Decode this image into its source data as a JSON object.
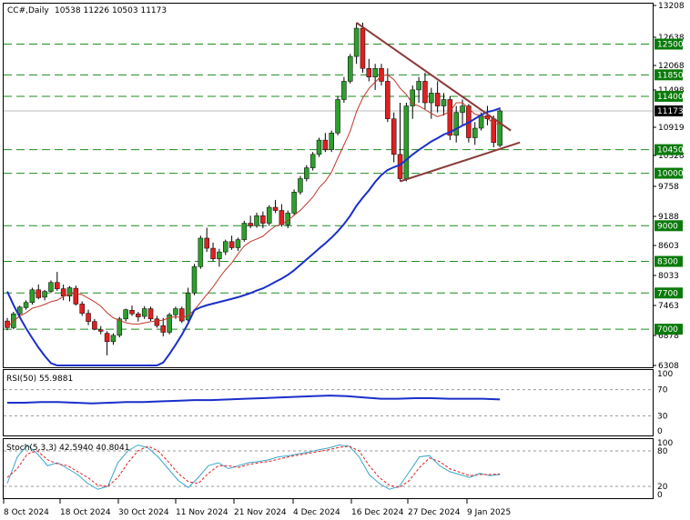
{
  "header": {
    "symbol": "CC#,Daily",
    "ohlc": "10538 11226 10503 11173"
  },
  "colors": {
    "up": "#2e9e2e",
    "down": "#e02020",
    "ma_fast": "#c0392b",
    "ma_slow": "#1a2fc9",
    "trendline": "#8b3a3a",
    "level_line": "#1e8c1e",
    "level_badge": "#0a7a0a",
    "price_badge": "#000000",
    "rsi": "#1a2fc9",
    "stoch_main": "#3aa6c8",
    "stoch_signal": "#e02020"
  },
  "chart_data": [
    {
      "type": "candlestick",
      "title": "CC#,Daily",
      "x": [
        "8 Oct 2024",
        "18 Oct 2024",
        "30 Oct 2024",
        "11 Nov 2024",
        "21 Nov 2024",
        "4 Dec 2024",
        "16 Dec 2024",
        "27 Dec 2024",
        "9 Jan 2025"
      ],
      "y_ticks": [
        13208,
        12638,
        12068,
        11498,
        10919,
        10328,
        9758,
        9188,
        8603,
        8033,
        7463,
        6878,
        6308
      ],
      "ylim": [
        6308,
        13208
      ],
      "current_price": "11173",
      "levels": [
        "12500",
        "11850",
        "11400",
        "10450",
        "10000",
        "9000",
        "8300",
        "7700",
        "7000"
      ],
      "candles": [
        [
          7160,
          7220,
          6980,
          7030
        ],
        [
          7030,
          7340,
          7000,
          7300
        ],
        [
          7300,
          7460,
          7240,
          7430
        ],
        [
          7420,
          7560,
          7380,
          7520
        ],
        [
          7520,
          7800,
          7480,
          7760
        ],
        [
          7760,
          7860,
          7580,
          7610
        ],
        [
          7620,
          7760,
          7560,
          7730
        ],
        [
          7730,
          7940,
          7700,
          7900
        ],
        [
          7900,
          8100,
          7740,
          7780
        ],
        [
          7780,
          7860,
          7560,
          7640
        ],
        [
          7640,
          7830,
          7540,
          7800
        ],
        [
          7790,
          7840,
          7460,
          7490
        ],
        [
          7490,
          7540,
          7260,
          7310
        ],
        [
          7310,
          7380,
          7080,
          7150
        ],
        [
          7150,
          7200,
          6980,
          7000
        ],
        [
          6990,
          7060,
          6900,
          6960
        ],
        [
          6920,
          6960,
          6500,
          6760
        ],
        [
          6760,
          6920,
          6700,
          6880
        ],
        [
          6880,
          7240,
          6840,
          7200
        ],
        [
          7200,
          7400,
          7150,
          7380
        ],
        [
          7370,
          7460,
          7260,
          7300
        ],
        [
          7300,
          7340,
          7150,
          7240
        ],
        [
          7250,
          7450,
          7200,
          7400
        ],
        [
          7400,
          7440,
          7160,
          7200
        ],
        [
          7200,
          7260,
          7030,
          7070
        ],
        [
          7070,
          7220,
          6860,
          6940
        ],
        [
          6940,
          7320,
          6900,
          7280
        ],
        [
          7280,
          7440,
          7200,
          7400
        ],
        [
          7400,
          7440,
          7120,
          7160
        ],
        [
          7180,
          7800,
          7150,
          7700
        ],
        [
          7700,
          8250,
          7660,
          8200
        ],
        [
          8200,
          8800,
          8160,
          8750
        ],
        [
          8750,
          8960,
          8480,
          8550
        ],
        [
          8550,
          8660,
          8300,
          8350
        ],
        [
          8350,
          8540,
          8200,
          8480
        ],
        [
          8480,
          8720,
          8420,
          8680
        ],
        [
          8680,
          8800,
          8520,
          8560
        ],
        [
          8560,
          8760,
          8500,
          8720
        ],
        [
          8720,
          9100,
          8680,
          9050
        ],
        [
          9050,
          9200,
          8950,
          9000
        ],
        [
          9000,
          9260,
          8960,
          9200
        ],
        [
          9200,
          9280,
          8950,
          9050
        ],
        [
          9050,
          9400,
          9000,
          9360
        ],
        [
          9360,
          9500,
          9250,
          9300
        ],
        [
          9300,
          9420,
          8980,
          9020
        ],
        [
          9020,
          9300,
          8950,
          9250
        ],
        [
          9250,
          9700,
          9200,
          9650
        ],
        [
          9650,
          9950,
          9600,
          9900
        ],
        [
          9900,
          10150,
          9850,
          10100
        ],
        [
          10100,
          10400,
          10050,
          10350
        ],
        [
          10350,
          10700,
          10300,
          10650
        ],
        [
          10650,
          10800,
          10400,
          10450
        ],
        [
          10450,
          10850,
          10400,
          10800
        ],
        [
          10800,
          11400,
          10750,
          11350
        ],
        [
          11350,
          11800,
          11300,
          11700
        ],
        [
          11700,
          12300,
          11650,
          12250
        ],
        [
          12250,
          12900,
          12100,
          12800
        ],
        [
          12800,
          12900,
          11900,
          12000
        ],
        [
          12000,
          12200,
          11700,
          11800
        ],
        [
          11800,
          12100,
          11500,
          12000
        ],
        [
          12000,
          12100,
          11600,
          11700
        ],
        [
          11700,
          12000,
          11000,
          11050
        ],
        [
          11050,
          11150,
          10200,
          10350
        ],
        [
          10350,
          11300,
          9850,
          9900
        ],
        [
          9900,
          11300,
          9850,
          11250
        ],
        [
          11250,
          11600,
          11050,
          11500
        ],
        [
          11500,
          11800,
          11300,
          11700
        ],
        [
          11700,
          11900,
          11200,
          11300
        ],
        [
          11300,
          11550,
          11050,
          11450
        ],
        [
          11450,
          11700,
          11150,
          11250
        ],
        [
          11250,
          11450,
          11100,
          11350
        ],
        [
          11350,
          11400,
          10650,
          10750
        ],
        [
          10750,
          11250,
          10600,
          11150
        ],
        [
          11150,
          11350,
          10950,
          11250
        ],
        [
          11250,
          11280,
          10600,
          10700
        ],
        [
          10700,
          11000,
          10550,
          10900
        ],
        [
          10900,
          11150,
          10850,
          11100
        ],
        [
          11100,
          11250,
          10950,
          11050
        ],
        [
          11050,
          11100,
          10500,
          10600
        ],
        [
          10538,
          11226,
          10503,
          11173
        ]
      ]
    },
    {
      "type": "line",
      "title": "RSI(50) 55.9881",
      "y_ticks": [
        100,
        70,
        30,
        0
      ],
      "ylim": [
        0,
        100
      ],
      "series": [
        {
          "values": [
            50,
            50,
            51,
            51,
            50,
            49,
            50,
            51,
            51,
            52,
            53,
            54,
            54,
            55,
            56,
            57,
            58,
            59,
            60,
            61,
            60,
            58,
            56,
            56,
            57,
            57,
            56,
            56,
            56,
            55
          ]
        }
      ]
    },
    {
      "type": "line",
      "title": "Stoch(5,3,3) 42.5940 40.8041",
      "y_ticks": [
        100,
        80,
        20,
        0
      ],
      "ylim": [
        0,
        100
      ],
      "series": [
        {
          "values": [
            25,
            70,
            90,
            75,
            55,
            60,
            50,
            40,
            25,
            15,
            20,
            60,
            80,
            90,
            85,
            70,
            50,
            30,
            18,
            35,
            55,
            60,
            50,
            55,
            60,
            62,
            65,
            70,
            72,
            75,
            78,
            82,
            85,
            90,
            88,
            70,
            40,
            25,
            15,
            20,
            45,
            70,
            72,
            55,
            45,
            40,
            35,
            42,
            38,
            40
          ]
        },
        {
          "values": [
            35,
            50,
            75,
            80,
            65,
            58,
            55,
            45,
            35,
            22,
            20,
            35,
            60,
            80,
            88,
            80,
            62,
            42,
            28,
            25,
            42,
            55,
            55,
            52,
            57,
            60,
            62,
            66,
            70,
            73,
            76,
            79,
            82,
            86,
            88,
            80,
            55,
            35,
            22,
            18,
            30,
            52,
            68,
            62,
            50,
            44,
            38,
            40,
            40,
            41
          ]
        }
      ]
    }
  ]
}
